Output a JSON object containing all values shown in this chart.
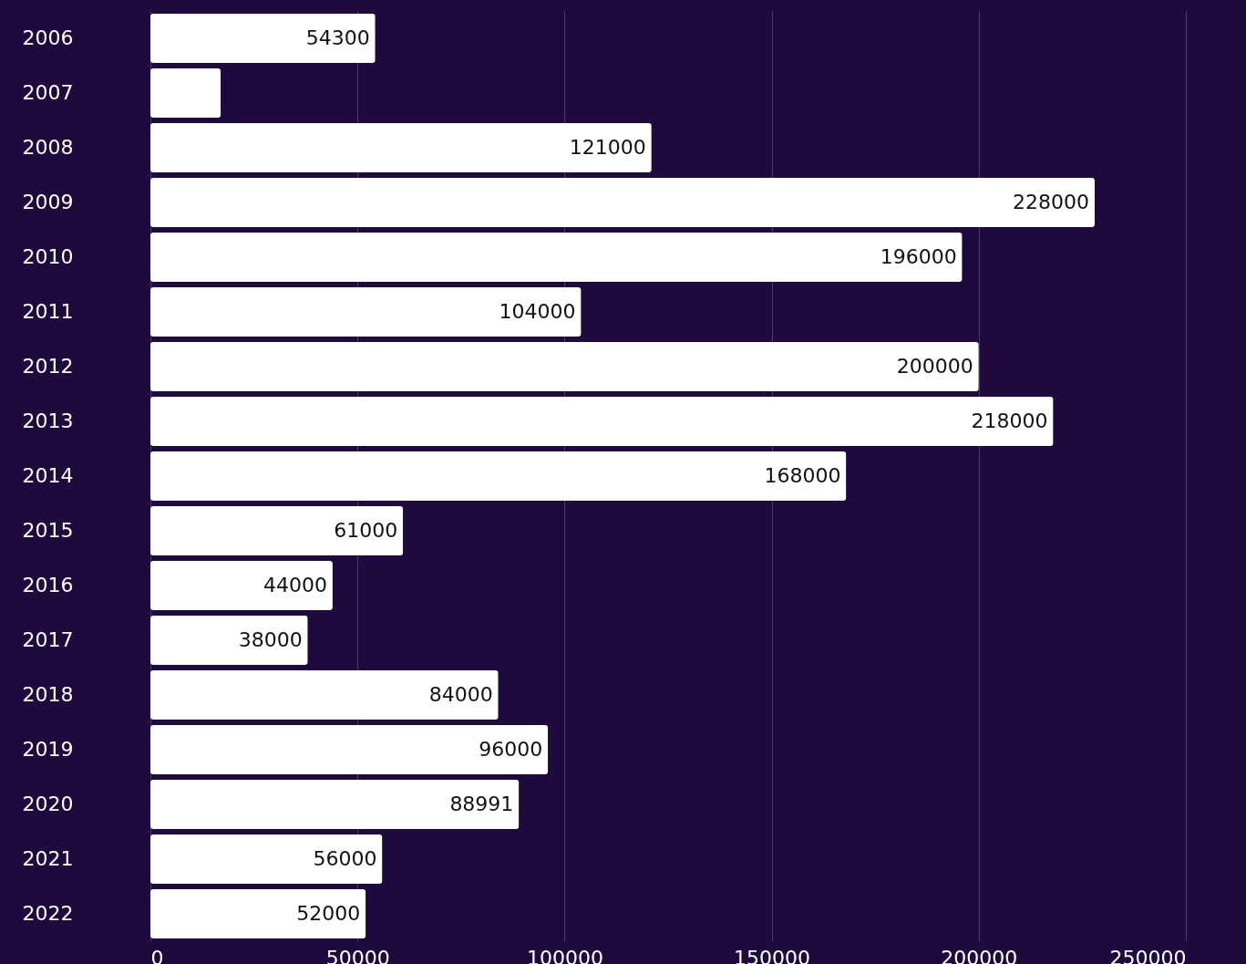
{
  "chart_data": {
    "type": "bar",
    "orientation": "horizontal",
    "categories": [
      "2006",
      "2007",
      "2008",
      "2009",
      "2010",
      "2011",
      "2012",
      "2013",
      "2014",
      "2015",
      "2016",
      "2017",
      "2018",
      "2019",
      "2020",
      "2021",
      "2022"
    ],
    "values": [
      54300,
      17000,
      121000,
      228000,
      196000,
      104000,
      200000,
      218000,
      168000,
      61000,
      44000,
      38000,
      84000,
      96000,
      88991,
      56000,
      52000
    ],
    "value_labels": [
      "54300",
      null,
      "121000",
      "228000",
      "196000",
      "104000",
      "200000",
      "218000",
      "168000",
      "61000",
      "44000",
      "38000",
      "84000",
      "96000",
      "88991",
      "56000",
      "52000"
    ],
    "color": "#ffffff",
    "xlim": [
      0,
      250000
    ],
    "xticks": [
      0,
      50000,
      100000,
      150000,
      200000,
      250000
    ],
    "grid": "x"
  }
}
